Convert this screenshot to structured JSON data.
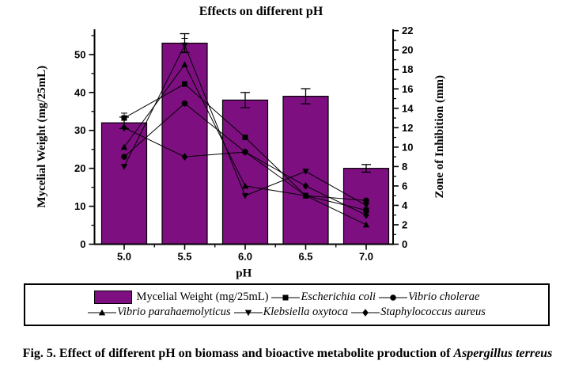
{
  "title": "Effects on different pH",
  "caption": {
    "text_bold": "Fig. 5. Effect of different pH on biomass and bioactive metabolite production of ",
    "text_bold_italic": "Aspergillus terreus"
  },
  "colors": {
    "bar_fill": "#7d0f80",
    "axis": "#000000",
    "background": "#ffffff"
  },
  "chart_data": {
    "type": "bar",
    "subtype": "bar + 5 marker-line series on secondary axis",
    "title": "Effects on different pH",
    "xlabel": "pH",
    "categories": [
      "5.0",
      "5.5",
      "6.0",
      "6.5",
      "7.0"
    ],
    "left_axis": {
      "label": "Mycelial Weight (mg/25mL)",
      "tick_labels": [
        0,
        10,
        20,
        30,
        40,
        50
      ],
      "minor_ticks": [
        5,
        15,
        25,
        35,
        45,
        55
      ],
      "range": [
        0,
        56.6
      ]
    },
    "right_axis": {
      "label": "Zone of Inhibition (mm)",
      "tick_labels": [
        0,
        2,
        4,
        6,
        8,
        10,
        12,
        14,
        16,
        18,
        20,
        22
      ],
      "minor_ticks": [
        1,
        3,
        5,
        7,
        9,
        11,
        13,
        15,
        17,
        19,
        21
      ],
      "range": [
        0,
        22.1
      ]
    },
    "grid": "off",
    "legend_position": "bottom-box",
    "bars": {
      "name": "Mycelial Weight (mg/25mL)",
      "values": [
        32,
        53,
        38,
        39,
        20
      ],
      "errors": [
        1.5,
        2.5,
        2,
        2,
        1
      ],
      "axis": "left"
    },
    "series": [
      {
        "name": "Escherichia coli",
        "marker": "square",
        "axis": "right",
        "values": [
          13,
          16.5,
          11,
          5,
          3.5
        ],
        "errors": [
          0.5,
          0,
          0,
          0,
          0
        ]
      },
      {
        "name": "Vibrio cholerae",
        "marker": "circle",
        "axis": "right",
        "values": [
          9,
          14.5,
          9.5,
          5,
          4.5
        ],
        "errors": [
          0,
          0,
          0,
          0,
          0
        ]
      },
      {
        "name": "Vibrio parahaemolyticus",
        "marker": "triangle-up",
        "axis": "right",
        "values": [
          10,
          18.5,
          6,
          5,
          2
        ],
        "errors": [
          0,
          0,
          0,
          0,
          0
        ]
      },
      {
        "name": "Klebsiella oxytoca",
        "marker": "triangle-down",
        "axis": "right",
        "values": [
          8,
          20.5,
          5,
          7.5,
          4
        ],
        "errors": [
          0,
          0.7,
          0,
          0,
          0
        ]
      },
      {
        "name": "Staphylococcus aureus",
        "marker": "diamond",
        "axis": "right",
        "values": [
          12,
          9,
          9.5,
          6,
          3
        ],
        "errors": [
          0,
          0,
          0,
          0,
          0
        ]
      }
    ]
  },
  "legend": {
    "rows": [
      [
        {
          "icon": "bar-swatch",
          "label": "Mycelial Weight (mg/25mL)",
          "italic": false
        },
        {
          "icon": "square",
          "label": "Escherichia coli",
          "italic": true
        },
        {
          "icon": "circle",
          "label": "Vibrio cholerae",
          "italic": true
        }
      ],
      [
        {
          "icon": "triangle-up",
          "label": "Vibrio parahaemolyticus",
          "italic": true
        },
        {
          "icon": "triangle-down",
          "label": "Klebsiella oxytoca",
          "italic": true
        },
        {
          "icon": "diamond",
          "label": "Staphylococcus aureus",
          "italic": true
        }
      ]
    ]
  }
}
